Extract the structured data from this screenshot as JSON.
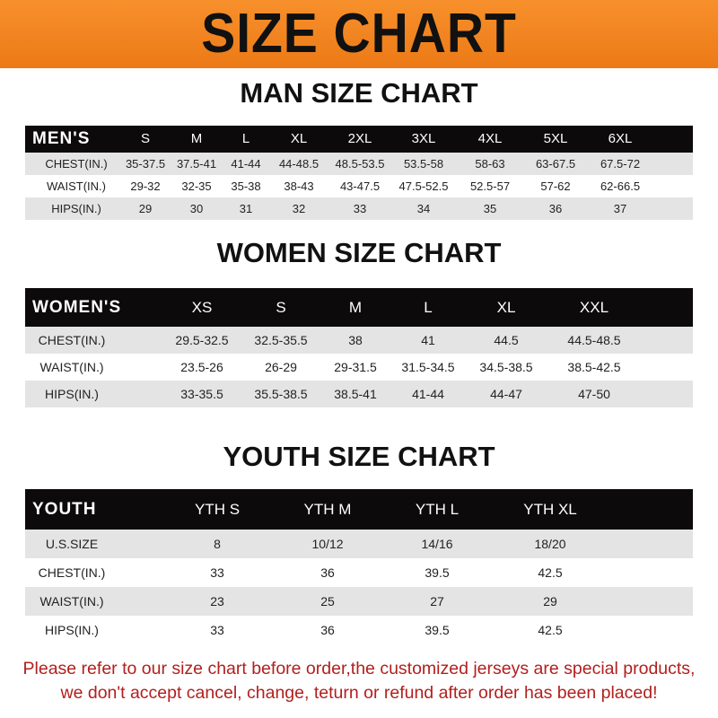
{
  "banner_title": "SIZE CHART",
  "men": {
    "title": "MAN SIZE CHART",
    "header": [
      "MEN'S",
      "S",
      "M",
      "L",
      "XL",
      "2XL",
      "3XL",
      "4XL",
      "5XL",
      "6XL"
    ],
    "rows": [
      [
        "CHEST(IN.)",
        "35-37.5",
        "37.5-41",
        "41-44",
        "44-48.5",
        "48.5-53.5",
        "53.5-58",
        "58-63",
        "63-67.5",
        "67.5-72"
      ],
      [
        "WAIST(IN.)",
        "29-32",
        "32-35",
        "35-38",
        "38-43",
        "43-47.5",
        "47.5-52.5",
        "52.5-57",
        "57-62",
        "62-66.5"
      ],
      [
        "HIPS(IN.)",
        "29",
        "30",
        "31",
        "32",
        "33",
        "34",
        "35",
        "36",
        "37"
      ]
    ]
  },
  "women": {
    "title": "WOMEN SIZE CHART",
    "header": [
      "WOMEN'S",
      "XS",
      "S",
      "M",
      "L",
      "XL",
      "XXL"
    ],
    "rows": [
      [
        "CHEST(IN.)",
        "29.5-32.5",
        "32.5-35.5",
        "38",
        "41",
        "44.5",
        "44.5-48.5"
      ],
      [
        "WAIST(IN.)",
        "23.5-26",
        "26-29",
        "29-31.5",
        "31.5-34.5",
        "34.5-38.5",
        "38.5-42.5"
      ],
      [
        "HIPS(IN.)",
        "33-35.5",
        "35.5-38.5",
        "38.5-41",
        "41-44",
        "44-47",
        "47-50"
      ]
    ]
  },
  "youth": {
    "title": "YOUTH SIZE CHART",
    "header": [
      "YOUTH",
      "YTH S",
      "YTH M",
      "YTH L",
      "YTH XL"
    ],
    "rows": [
      [
        "U.S.SIZE",
        "8",
        "10/12",
        "14/16",
        "18/20"
      ],
      [
        "CHEST(IN.)",
        "33",
        "36",
        "39.5",
        "42.5"
      ],
      [
        "WAIST(IN.)",
        "23",
        "25",
        "27",
        "29"
      ],
      [
        "HIPS(IN.)",
        "33",
        "36",
        "39.5",
        "42.5"
      ]
    ]
  },
  "footer": {
    "line1": "Please refer to our size chart before order,the customized jerseys are special products,",
    "line2": "we don't accept cancel, change, teturn or refund after order has been placed!"
  },
  "colors": {
    "banner": "#f08020",
    "header_row": "#0c0a0a",
    "alt_row": "#e4e4e4",
    "notice_text": "#b1201e"
  }
}
